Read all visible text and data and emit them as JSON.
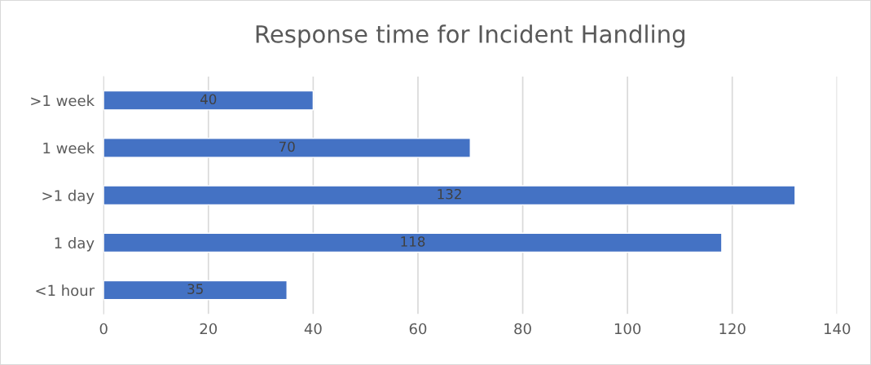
{
  "chart_data": {
    "type": "bar",
    "orientation": "horizontal",
    "title": "Response time for Incident Handling",
    "categories": [
      ">1 week",
      "1 week",
      ">1 day",
      "1 day",
      "<1 hour"
    ],
    "values": [
      40,
      70,
      132,
      118,
      35
    ],
    "color": "#4472c4",
    "xlim": [
      0,
      140
    ],
    "xticks": [
      0,
      20,
      40,
      60,
      80,
      100,
      120,
      140
    ],
    "grid": "x",
    "data_labels": true
  }
}
